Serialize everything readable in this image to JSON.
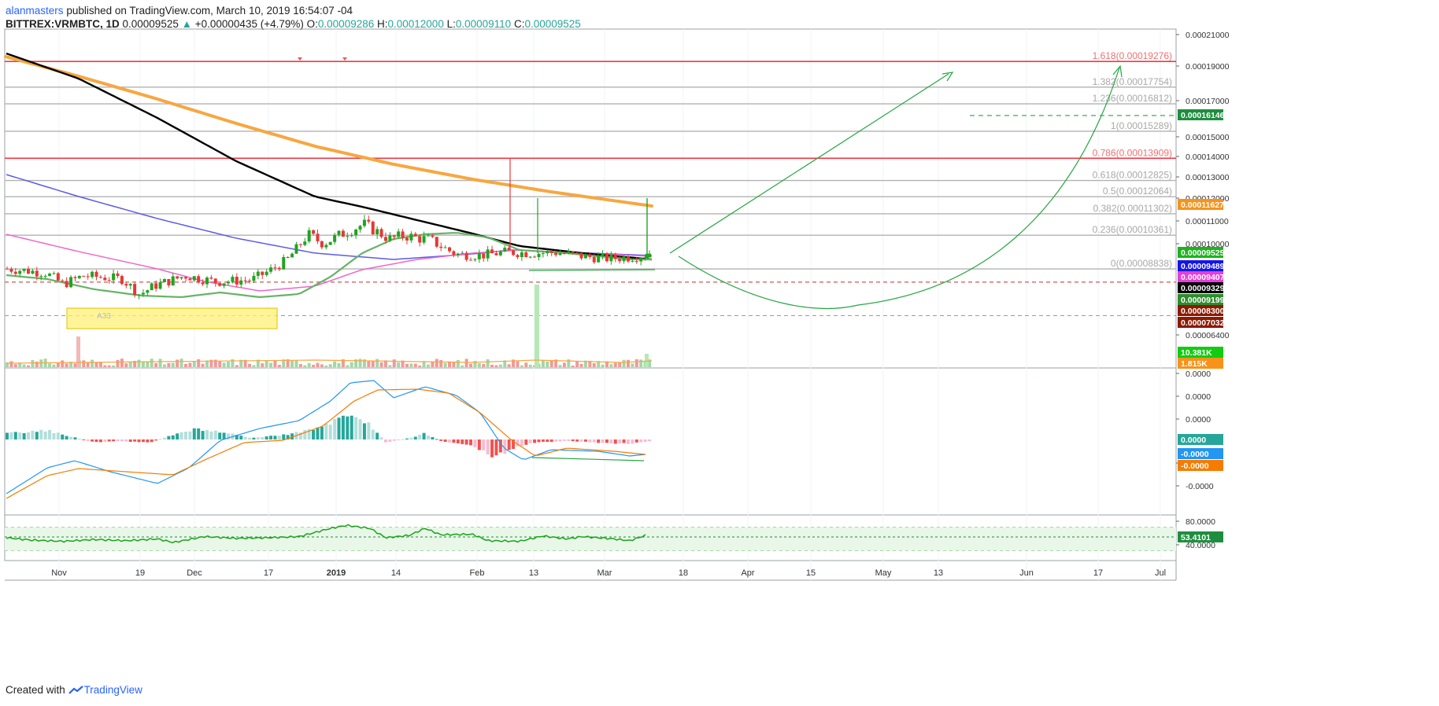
{
  "header": {
    "author": "alanmasters",
    "published": "published on TradingView.com, March 10, 2019 16:54:07 -04",
    "symbol": "BITTREX:VRMBTC, 1D",
    "last": "0.00009525",
    "change_arrow": "▲",
    "change": "+0.00000435 (+4.79%)",
    "o_label": "O:",
    "o_value": "0.00009286",
    "h_label": "H:",
    "h_value": "0.00012000",
    "l_label": "L:",
    "l_value": "0.00009110",
    "c_label": "C:",
    "c_value": "0.00009525"
  },
  "footer": {
    "created_with": "Created with",
    "brand": "TradingView"
  },
  "colors": {
    "up": "#26a69a",
    "down": "#ef5350",
    "sma_black": "#000000",
    "sma_orange": "#f7a740",
    "ema_blue": "#5b5be6",
    "ema_pink": "#ee66cc",
    "ema_green": "#66b366",
    "fib_gray": "#b2b2b2",
    "fib_red": "#f23645",
    "arrow_green": "#26a641"
  },
  "chart_data": [
    {
      "type": "candlestick",
      "pane": "price",
      "x_ticks": [
        "Nov",
        "19",
        "Dec",
        "17",
        "2019",
        "14",
        "Feb",
        "13",
        "Mar",
        "18",
        "Apr",
        "15",
        "May",
        "13",
        "Jun",
        "17",
        "Jul"
      ],
      "y_ticks": [
        0.00021,
        0.00019,
        0.00017,
        0.00015,
        0.00014,
        0.00013,
        0.00012,
        0.00011,
        0.0001,
        6.4e-05
      ],
      "y_tick_labels": [
        "0.00021000",
        "0.00019000",
        "0.00017000",
        "0.00015000",
        "0.00014000",
        "0.00013000",
        "0.00012000",
        "0.00011000",
        "0.00010000",
        "0.00006400"
      ],
      "ylim": [
        5.75e-05,
        0.000212
      ],
      "fib_levels": [
        {
          "label": "1.618(0.00019276)",
          "value": 0.00019276,
          "color": "red"
        },
        {
          "label": "1.382(0.00017754)",
          "value": 0.00017754,
          "color": "gray"
        },
        {
          "label": "1.236(0.00016812)",
          "value": 0.00016812,
          "color": "gray"
        },
        {
          "label": "1(0.00015289)",
          "value": 0.00015289,
          "color": "gray"
        },
        {
          "label": "0.786(0.00013909)",
          "value": 0.00013909,
          "color": "red"
        },
        {
          "label": "0.618(0.00012825)",
          "value": 0.00012825,
          "color": "gray"
        },
        {
          "label": "0.5(0.00012064)",
          "value": 0.00012064,
          "color": "gray"
        },
        {
          "label": "0.382(0.00011302)",
          "value": 0.00011302,
          "color": "gray"
        },
        {
          "label": "0.236(0.00010361)",
          "value": 0.00010361,
          "color": "gray"
        },
        {
          "label": "0(0.00008838)",
          "value": 8.838e-05,
          "color": "gray"
        }
      ],
      "support_dashed": [
        8.838e-05,
        8.3e-05,
        7.032e-05
      ],
      "target_dashed": 0.00016146,
      "price_tags": [
        {
          "text": "0.00016146",
          "value": 0.00016146,
          "color": "#1e8e3e"
        },
        {
          "text": "0.00011627",
          "value": 0.00011627,
          "color": "#f7931a"
        },
        {
          "text": "0.00009525",
          "value": 9.525e-05,
          "color": "#1db31d"
        },
        {
          "text": "0.00009489",
          "value": 9.489e-05,
          "color": "#1515e6"
        },
        {
          "text": "0.00009407",
          "value": 9.407e-05,
          "color": "#e53fd8"
        },
        {
          "text": "0.00009329",
          "value": 9.329e-05,
          "color": "#000000"
        },
        {
          "text": "0.00009199",
          "value": 9.199e-05,
          "color": "#2e8b2e"
        },
        {
          "text": "0.00008300",
          "value": 8.3e-05,
          "color": "#8b1a00"
        },
        {
          "text": "0.00007032",
          "value": 7.032e-05,
          "color": "#8b1a00"
        }
      ],
      "volume_tags": [
        {
          "text": "10.381K",
          "color": "#11cc11"
        },
        {
          "text": "1.815K",
          "color": "#f7931a"
        }
      ],
      "box_label": "A33"
    },
    {
      "type": "macd",
      "pane": "macd",
      "y_tick_labels": [
        "0.0000",
        "0.0000",
        "0.0000",
        "0.0000",
        "-0.0000"
      ],
      "tags": [
        {
          "text": "0.0000",
          "color": "#26a69a"
        },
        {
          "text": "-0.0000",
          "color": "#2196f3"
        },
        {
          "text": "-0.0000",
          "color": "#f57c00"
        }
      ]
    },
    {
      "type": "rsi",
      "pane": "rsi",
      "y_ticks": [
        80,
        40
      ],
      "y_tick_labels": [
        "80.0000",
        "40.0000"
      ],
      "ylim": [
        20,
        84
      ],
      "bands": [
        70,
        30
      ],
      "mid": 53.4101,
      "tag": {
        "text": "53.4101",
        "color": "#1e8e3e"
      }
    }
  ]
}
